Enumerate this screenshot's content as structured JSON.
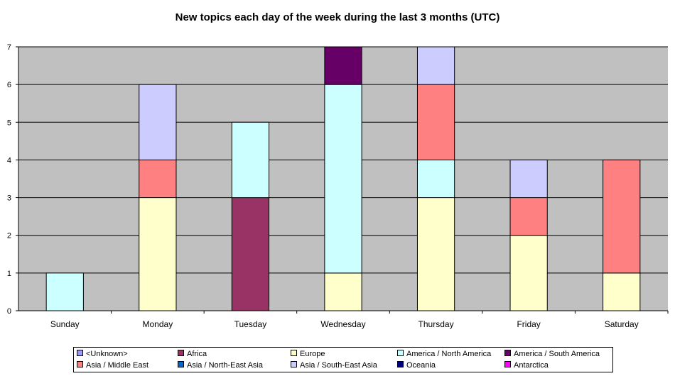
{
  "chart_data": {
    "type": "bar",
    "stacked": true,
    "title": "New topics each day of the week during the last 3 months (UTC)",
    "xlabel": "",
    "ylabel": "",
    "ylim": [
      0,
      7
    ],
    "yticks": [
      "0",
      "1",
      "2",
      "3",
      "4",
      "5",
      "6",
      "7"
    ],
    "grid": true,
    "legend_position": "bottom",
    "plot_background": "#c0c0c0",
    "categories": [
      "Sunday",
      "Monday",
      "Tuesday",
      "Wednesday",
      "Thursday",
      "Friday",
      "Saturday"
    ],
    "series": [
      {
        "name": "<Unknown>",
        "color": "#9999ff",
        "values": [
          0,
          0,
          0,
          0,
          0,
          0,
          0
        ]
      },
      {
        "name": "Africa",
        "color": "#993366",
        "values": [
          0,
          0,
          3,
          0,
          0,
          0,
          0
        ]
      },
      {
        "name": "Europe",
        "color": "#ffffcc",
        "values": [
          0,
          3,
          0,
          1,
          3,
          2,
          1
        ]
      },
      {
        "name": "America / North America",
        "color": "#ccffff",
        "values": [
          1,
          0,
          2,
          5,
          1,
          0,
          0
        ]
      },
      {
        "name": "America / South America",
        "color": "#660066",
        "values": [
          0,
          0,
          0,
          1,
          0,
          0,
          0
        ]
      },
      {
        "name": "Asia / Middle East",
        "color": "#ff8080",
        "values": [
          0,
          1,
          0,
          0,
          2,
          1,
          3
        ]
      },
      {
        "name": "Asia / North-East Asia",
        "color": "#0066cc",
        "values": [
          0,
          0,
          0,
          0,
          0,
          0,
          0
        ]
      },
      {
        "name": "Asia / South-East Asia",
        "color": "#ccccff",
        "values": [
          0,
          2,
          0,
          0,
          1,
          1,
          0
        ]
      },
      {
        "name": "Oceania",
        "color": "#000080",
        "values": [
          0,
          0,
          0,
          0,
          0,
          0,
          0
        ]
      },
      {
        "name": "Antarctica",
        "color": "#ff00ff",
        "values": [
          0,
          0,
          0,
          0,
          0,
          0,
          0
        ]
      }
    ]
  }
}
